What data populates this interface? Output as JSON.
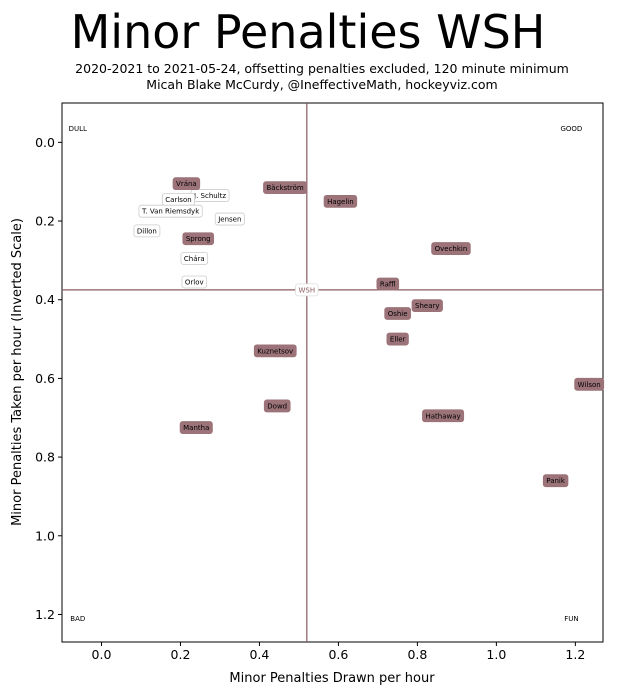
{
  "chart_data": {
    "type": "scatter",
    "title": "Minor Penalties WSH",
    "subtitle_lines": [
      "2020-2021 to 2021-05-24, offsetting penalties excluded, 120 minute minimum",
      "Micah Blake McCurdy, @IneffectiveMath, hockeyviz.com"
    ],
    "xlabel": "Minor Penalties Drawn per hour",
    "ylabel": "Minor Penalties Taken per hour (Inverted Scale)",
    "xlim": [
      -0.1,
      1.27
    ],
    "ylim": [
      -0.1,
      1.27
    ],
    "y_inverted": true,
    "xticks": [
      0.0,
      0.2,
      0.4,
      0.6,
      0.8,
      1.0,
      1.2
    ],
    "yticks": [
      0.0,
      0.2,
      0.4,
      0.6,
      0.8,
      1.0,
      1.2
    ],
    "tick_format": "0.1f",
    "team_reference": {
      "label": "WSH",
      "x": 0.52,
      "y": 0.375
    },
    "quadrant_labels": [
      {
        "label": "DULL",
        "x": -0.06,
        "y": -0.035
      },
      {
        "label": "GOOD",
        "x": 1.19,
        "y": -0.035
      },
      {
        "label": "BAD",
        "x": -0.06,
        "y": 1.21
      },
      {
        "label": "FUN",
        "x": 1.19,
        "y": 1.21
      }
    ],
    "colors": {
      "highlight": "#9b7378",
      "reference_line": "#8b5a60",
      "plain_box_border": "#cccccc"
    },
    "points": [
      {
        "name": "Vrána",
        "x": 0.215,
        "y": 0.105,
        "highlight": true
      },
      {
        "name": "J. Schultz",
        "x": 0.275,
        "y": 0.135,
        "highlight": false
      },
      {
        "name": "Carlson",
        "x": 0.195,
        "y": 0.145,
        "highlight": false
      },
      {
        "name": "T. Van Riemsdyk",
        "x": 0.175,
        "y": 0.175,
        "highlight": false
      },
      {
        "name": "Jensen",
        "x": 0.325,
        "y": 0.195,
        "highlight": false
      },
      {
        "name": "Dillon",
        "x": 0.115,
        "y": 0.225,
        "highlight": false
      },
      {
        "name": "Sprong",
        "x": 0.245,
        "y": 0.245,
        "highlight": true
      },
      {
        "name": "Chára",
        "x": 0.235,
        "y": 0.295,
        "highlight": false
      },
      {
        "name": "Orlov",
        "x": 0.235,
        "y": 0.355,
        "highlight": false
      },
      {
        "name": "Bäckström",
        "x": 0.465,
        "y": 0.115,
        "highlight": true
      },
      {
        "name": "Hagelin",
        "x": 0.605,
        "y": 0.15,
        "highlight": true
      },
      {
        "name": "Ovechkin",
        "x": 0.885,
        "y": 0.27,
        "highlight": true
      },
      {
        "name": "Raffl",
        "x": 0.725,
        "y": 0.36,
        "highlight": true
      },
      {
        "name": "Sheary",
        "x": 0.825,
        "y": 0.415,
        "highlight": true
      },
      {
        "name": "Oshie",
        "x": 0.75,
        "y": 0.435,
        "highlight": true
      },
      {
        "name": "Eller",
        "x": 0.75,
        "y": 0.5,
        "highlight": true
      },
      {
        "name": "Kuznetsov",
        "x": 0.44,
        "y": 0.53,
        "highlight": true
      },
      {
        "name": "Wilson",
        "x": 1.235,
        "y": 0.615,
        "highlight": true
      },
      {
        "name": "Dowd",
        "x": 0.445,
        "y": 0.67,
        "highlight": true
      },
      {
        "name": "Hathaway",
        "x": 0.865,
        "y": 0.695,
        "highlight": true
      },
      {
        "name": "Mantha",
        "x": 0.24,
        "y": 0.725,
        "highlight": true
      },
      {
        "name": "Panik",
        "x": 1.15,
        "y": 0.86,
        "highlight": true
      }
    ]
  }
}
